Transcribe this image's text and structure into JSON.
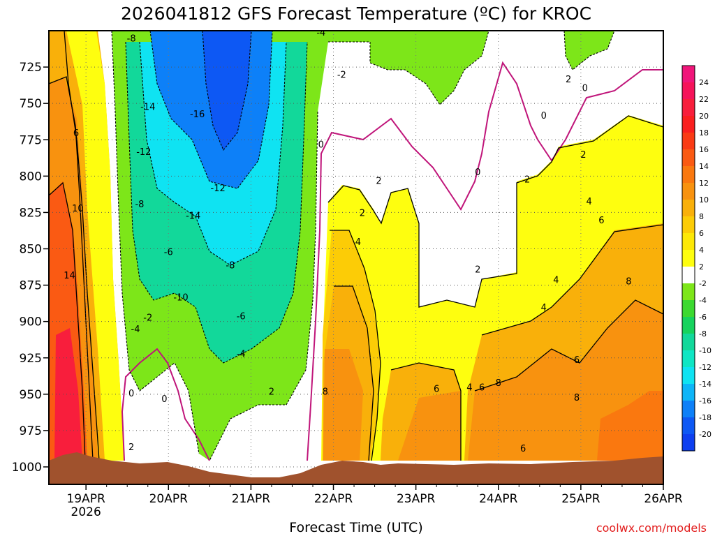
{
  "chart_data": {
    "type": "heatmap",
    "title": "2026041812 GFS Forecast Temperature (ºC) for KROC",
    "xlabel": "Forecast Time (UTC)",
    "ylabel": "",
    "credit": "coolwx.com/models",
    "x_ticks": [
      "19APR",
      "20APR",
      "21APR",
      "22APR",
      "23APR",
      "24APR",
      "25APR",
      "26APR"
    ],
    "x_tick_sub": "2026",
    "x_range": [
      -0.45,
      7.0
    ],
    "y_ticks": [
      "725",
      "750",
      "775",
      "800",
      "825",
      "850",
      "875",
      "900",
      "925",
      "950",
      "975",
      "1000"
    ],
    "y_range": [
      700,
      1012
    ],
    "colorbar": {
      "labels": [
        "24",
        "22",
        "20",
        "18",
        "16",
        "14",
        "12",
        "10",
        "8",
        "6",
        "4",
        "2",
        "-2",
        "-4",
        "-6",
        "-8",
        "-10",
        "-12",
        "-14",
        "-16",
        "-18",
        "-20"
      ],
      "colors": [
        "#f0157a",
        "#f5135a",
        "#f81e3c",
        "#fa1f1f",
        "#fa3b15",
        "#fa5a13",
        "#fa780f",
        "#f8920f",
        "#f9b00a",
        "#fccc06",
        "#fde806",
        "#fefe0f",
        "#ffffff",
        "#7de619",
        "#3cd930",
        "#16d35d",
        "#12d89a",
        "#0fe6c4",
        "#0fe3f2",
        "#0db5f8",
        "#0d80f8",
        "#0d58f4",
        "#0d3ff0"
      ]
    },
    "contour_labels": [
      {
        "t": -0.12,
        "p": 770,
        "v": "6"
      },
      {
        "t": -0.1,
        "p": 822,
        "v": "10"
      },
      {
        "t": -0.2,
        "p": 868,
        "v": "14"
      },
      {
        "t": 0.55,
        "p": 705,
        "v": "-8"
      },
      {
        "t": 0.75,
        "p": 752,
        "v": "-14"
      },
      {
        "t": 1.35,
        "p": 757,
        "v": "-16"
      },
      {
        "t": 0.7,
        "p": 783,
        "v": "-12"
      },
      {
        "t": 0.65,
        "p": 819,
        "v": "-8"
      },
      {
        "t": 1.0,
        "p": 852,
        "v": "-6"
      },
      {
        "t": 1.3,
        "p": 827,
        "v": "-14"
      },
      {
        "t": 1.6,
        "p": 808,
        "v": "-12"
      },
      {
        "t": 1.75,
        "p": 861,
        "v": "-8"
      },
      {
        "t": 1.15,
        "p": 883,
        "v": "-10"
      },
      {
        "t": 1.88,
        "p": 896,
        "v": "-6"
      },
      {
        "t": 1.88,
        "p": 922,
        "v": "-4"
      },
      {
        "t": 0.75,
        "p": 897,
        "v": "-2"
      },
      {
        "t": 0.6,
        "p": 905,
        "v": "-4"
      },
      {
        "t": 0.55,
        "p": 949,
        "v": "0"
      },
      {
        "t": 0.95,
        "p": 953,
        "v": "0"
      },
      {
        "t": 2.25,
        "p": 948,
        "v": "2"
      },
      {
        "t": 0.55,
        "p": 986,
        "v": "2"
      },
      {
        "t": 2.85,
        "p": 701,
        "v": "-4"
      },
      {
        "t": 3.1,
        "p": 730,
        "v": "-2"
      },
      {
        "t": 2.85,
        "p": 778,
        "v": "0"
      },
      {
        "t": 3.55,
        "p": 803,
        "v": "2"
      },
      {
        "t": 3.35,
        "p": 825,
        "v": "2"
      },
      {
        "t": 3.3,
        "p": 845,
        "v": "4"
      },
      {
        "t": 2.9,
        "p": 948,
        "v": "8"
      },
      {
        "t": 4.25,
        "p": 946,
        "v": "6"
      },
      {
        "t": 4.65,
        "p": 945,
        "v": "4"
      },
      {
        "t": 4.8,
        "p": 945,
        "v": "6"
      },
      {
        "t": 5.0,
        "p": 942,
        "v": "8"
      },
      {
        "t": 4.75,
        "p": 864,
        "v": "2"
      },
      {
        "t": 5.55,
        "p": 890,
        "v": "4"
      },
      {
        "t": 5.7,
        "p": 871,
        "v": "4"
      },
      {
        "t": 5.55,
        "p": 758,
        "v": "0"
      },
      {
        "t": 4.75,
        "p": 797,
        "v": "0"
      },
      {
        "t": 5.35,
        "p": 802,
        "v": "2"
      },
      {
        "t": 6.05,
        "p": 739,
        "v": "0"
      },
      {
        "t": 5.85,
        "p": 733,
        "v": "2"
      },
      {
        "t": 6.03,
        "p": 785,
        "v": "2"
      },
      {
        "t": 6.1,
        "p": 817,
        "v": "4"
      },
      {
        "t": 6.25,
        "p": 830,
        "v": "6"
      },
      {
        "t": 6.58,
        "p": 872,
        "v": "8"
      },
      {
        "t": 5.95,
        "p": 926,
        "v": "6"
      },
      {
        "t": 5.95,
        "p": 952,
        "v": "8"
      },
      {
        "t": 5.3,
        "p": 987,
        "v": "6"
      }
    ]
  }
}
